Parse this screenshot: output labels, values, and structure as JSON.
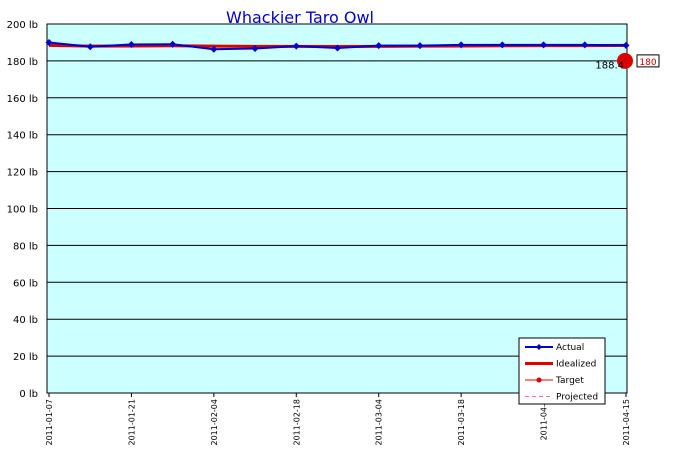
{
  "chart_data": {
    "type": "line",
    "title": "Whackier Taro Owl",
    "colors": {
      "plot_background": "#ccffff",
      "actual": "#0000cc",
      "idealized": "#dd0000",
      "target": "#dd0000",
      "projected": "#ff66aa",
      "grid": "#000000",
      "title": "#0000cc"
    },
    "y_axis": {
      "min": 0,
      "max": 200,
      "ticks": [
        {
          "value": 0,
          "label": "0 lb"
        },
        {
          "value": 20,
          "label": "20 lb"
        },
        {
          "value": 40,
          "label": "40 lb"
        },
        {
          "value": 60,
          "label": "60 lb"
        },
        {
          "value": 80,
          "label": "80 lb"
        },
        {
          "value": 100,
          "label": "100 lb"
        },
        {
          "value": 120,
          "label": "120 lb"
        },
        {
          "value": 140,
          "label": "140 lb"
        },
        {
          "value": 160,
          "label": "160 lb"
        },
        {
          "value": 180,
          "label": "180 lb"
        },
        {
          "value": 200,
          "label": "200 lb"
        }
      ],
      "grid": true
    },
    "x_axis": {
      "min": "2011-01-07",
      "max": "2011-04-15",
      "ticks": [
        "2011-01-07",
        "2011-01-21",
        "2011-02-04",
        "2011-02-18",
        "2011-03-04",
        "2011-03-18",
        "2011-04-0",
        "2011-04-15"
      ]
    },
    "series": [
      {
        "name": "Actual",
        "style": "line-diamond",
        "points": [
          {
            "x": "2011-01-07",
            "y": 190.0
          },
          {
            "x": "2011-01-14",
            "y": 187.7
          },
          {
            "x": "2011-01-21",
            "y": 188.9
          },
          {
            "x": "2011-01-28",
            "y": 189.0
          },
          {
            "x": "2011-02-04",
            "y": 186.3
          },
          {
            "x": "2011-02-11",
            "y": 186.7
          },
          {
            "x": "2011-02-18",
            "y": 188.0
          },
          {
            "x": "2011-02-25",
            "y": 187.0
          },
          {
            "x": "2011-03-04",
            "y": 188.3
          },
          {
            "x": "2011-03-11",
            "y": 188.3
          },
          {
            "x": "2011-03-18",
            "y": 188.7
          },
          {
            "x": "2011-03-25",
            "y": 188.7
          },
          {
            "x": "2011-04-01",
            "y": 188.7
          },
          {
            "x": "2011-04-08",
            "y": 188.7
          },
          {
            "x": "2011-04-15",
            "y": 188.4
          }
        ]
      },
      {
        "name": "Idealized",
        "style": "thick-line",
        "points": [
          {
            "x": "2011-01-07",
            "y": 188.4
          },
          {
            "x": "2011-01-14",
            "y": 188.0
          },
          {
            "x": "2011-01-21",
            "y": 188.1
          },
          {
            "x": "2011-01-28",
            "y": 188.2
          },
          {
            "x": "2011-02-04",
            "y": 188.0
          },
          {
            "x": "2011-02-11",
            "y": 187.9
          },
          {
            "x": "2011-02-18",
            "y": 187.9
          },
          {
            "x": "2011-02-25",
            "y": 187.8
          },
          {
            "x": "2011-03-04",
            "y": 187.9
          },
          {
            "x": "2011-03-11",
            "y": 188.0
          },
          {
            "x": "2011-03-18",
            "y": 188.1
          },
          {
            "x": "2011-03-25",
            "y": 188.2
          },
          {
            "x": "2011-04-01",
            "y": 188.3
          },
          {
            "x": "2011-04-08",
            "y": 188.3
          },
          {
            "x": "2011-04-15",
            "y": 188.4
          }
        ]
      },
      {
        "name": "Target",
        "style": "line-dot",
        "points": [
          {
            "x": "2011-04-15",
            "y": 180
          }
        ]
      },
      {
        "name": "Projected",
        "style": "dashed",
        "points": []
      }
    ],
    "legend": {
      "position": "bottom-right",
      "entries": [
        "Actual",
        "Idealized",
        "Target",
        "Projected"
      ]
    },
    "annotations": [
      {
        "text": "188.4",
        "x": "2011-04-15",
        "y": 188.4
      },
      {
        "text": "180",
        "x": "2011-04-15",
        "y": 180,
        "boxed": true
      }
    ]
  }
}
